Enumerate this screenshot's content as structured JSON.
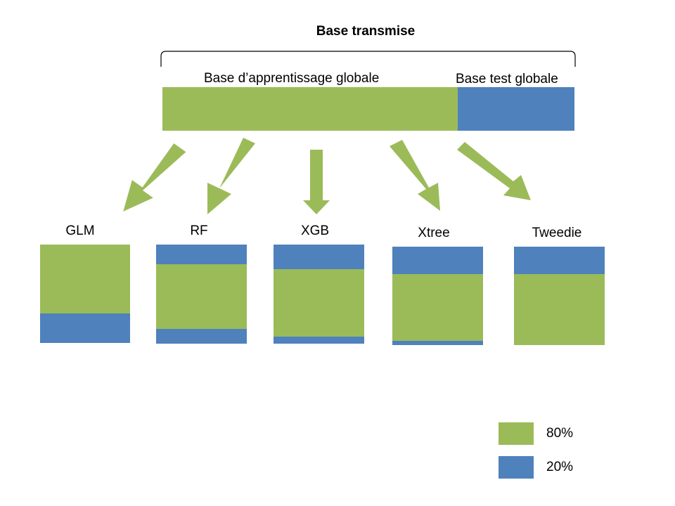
{
  "title": "Base transmise",
  "colors": {
    "green": "#9BBB59",
    "blue": "#4F81BD"
  },
  "top_bar": {
    "train_label": "Base d’apprentissage globale",
    "test_label": "Base test globale",
    "train_fraction": 0.717
  },
  "models": [
    {
      "name": "GLM",
      "segments": [
        {
          "color": "green",
          "fraction": 0.7
        },
        {
          "color": "blue",
          "fraction": 0.3
        }
      ]
    },
    {
      "name": "RF",
      "segments": [
        {
          "color": "blue",
          "fraction": 0.2
        },
        {
          "color": "green",
          "fraction": 0.65
        },
        {
          "color": "blue",
          "fraction": 0.15
        }
      ]
    },
    {
      "name": "XGB",
      "segments": [
        {
          "color": "blue",
          "fraction": 0.25
        },
        {
          "color": "green",
          "fraction": 0.68
        },
        {
          "color": "blue",
          "fraction": 0.07
        }
      ]
    },
    {
      "name": "Xtree",
      "segments": [
        {
          "color": "blue",
          "fraction": 0.28
        },
        {
          "color": "green",
          "fraction": 0.68
        },
        {
          "color": "blue",
          "fraction": 0.04
        }
      ]
    },
    {
      "name": "Tweedie",
      "segments": [
        {
          "color": "blue",
          "fraction": 0.28
        },
        {
          "color": "green",
          "fraction": 0.72
        }
      ]
    }
  ],
  "legend": [
    {
      "color": "green",
      "label": "80%"
    },
    {
      "color": "blue",
      "label": "20%"
    }
  ]
}
